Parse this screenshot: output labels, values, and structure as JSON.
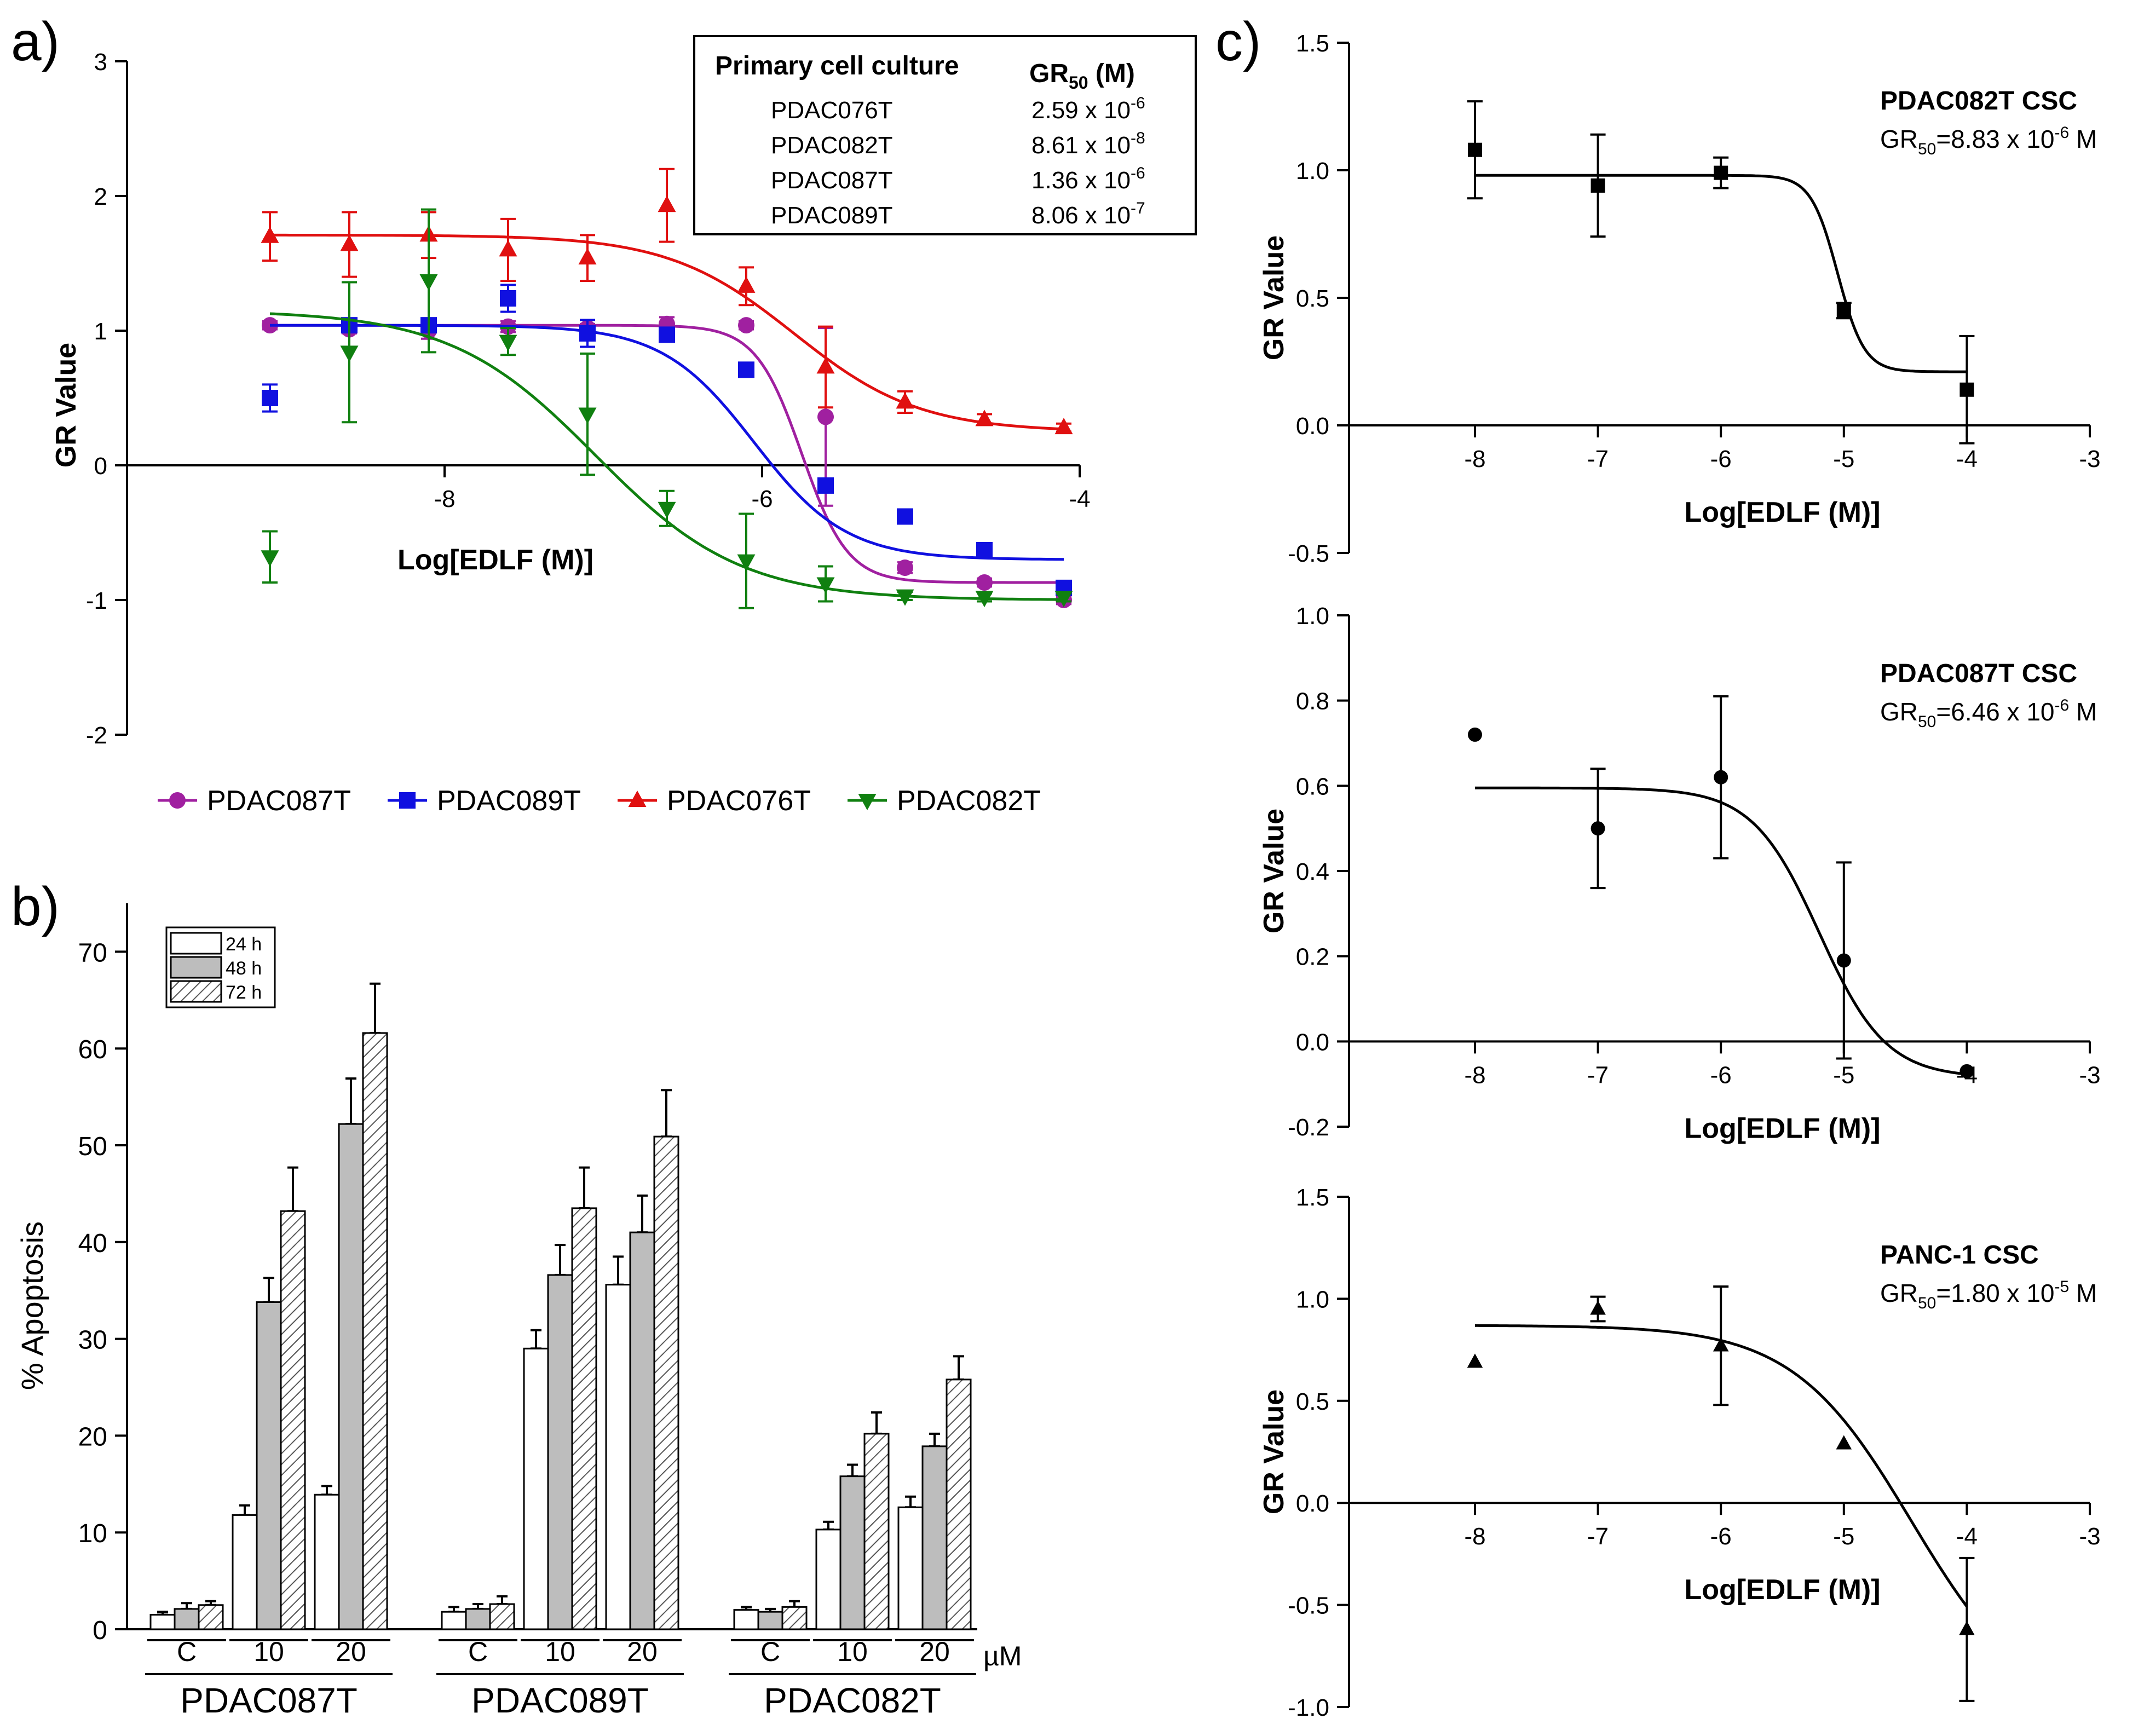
{
  "panel_labels": {
    "a": "a)",
    "b": "b)",
    "c": "c)"
  },
  "colors": {
    "PDAC087T": "#a020a0",
    "PDAC089T": "#1010e0",
    "PDAC076T": "#e01010",
    "PDAC082T": "#108010",
    "h24": "#ffffff",
    "h48": "#bdbdbd"
  },
  "table": {
    "header_col1": "Primary cell culture",
    "header_col2": "GR",
    "header_sub": "50",
    "header_unit": " (M)",
    "rows": [
      {
        "name": "PDAC076T",
        "mant": "2.59 x 10",
        "exp": "-6"
      },
      {
        "name": "PDAC082T",
        "mant": "8.61 x 10",
        "exp": "-8"
      },
      {
        "name": "PDAC087T",
        "mant": "1.36 x 10",
        "exp": "-6"
      },
      {
        "name": "PDAC089T",
        "mant": "8.06 x 10",
        "exp": "-7"
      }
    ]
  },
  "chart_data": [
    {
      "id": "a",
      "type": "scatter",
      "title": "",
      "xlabel": "Log[EDLF (M)]",
      "ylabel": "GR Value",
      "xlim": [
        -10,
        -4
      ],
      "ylim": [
        -2,
        3
      ],
      "xticks": [
        -8,
        -6,
        -4
      ],
      "yticks": [
        -2,
        -1,
        0,
        1,
        2,
        3
      ],
      "legend_position": "bottom",
      "series": [
        {
          "name": "PDAC087T",
          "marker": "circle",
          "x": [
            -9.1,
            -8.6,
            -8.1,
            -7.6,
            -7.1,
            -6.6,
            -6.1,
            -5.6,
            -5.1,
            -4.6,
            -4.1
          ],
          "y": [
            1.04,
            1.01,
            1.0,
            1.03,
            1.02,
            1.05,
            1.04,
            0.36,
            -0.76,
            -0.87,
            -1.0
          ],
          "err": [
            0.03,
            0.03,
            0.06,
            0.04,
            0.03,
            0.05,
            0.03,
            0.66,
            0.04,
            0.03,
            0.03
          ],
          "fit": {
            "top": 1.04,
            "bottom": -0.87,
            "logec50": -5.75,
            "hill": 3.0
          }
        },
        {
          "name": "PDAC089T",
          "marker": "square",
          "x": [
            -9.1,
            -8.6,
            -8.1,
            -7.6,
            -7.1,
            -6.6,
            -6.1,
            -5.6,
            -5.1,
            -4.6,
            -4.1
          ],
          "y": [
            0.5,
            1.04,
            1.04,
            1.24,
            0.98,
            0.97,
            0.71,
            -0.15,
            -0.38,
            -0.63,
            -0.91
          ],
          "err": [
            0.1,
            0.05,
            0.05,
            0.1,
            0.1,
            0.05,
            0.04,
            0.05,
            0.04,
            0.04,
            0.05
          ],
          "fit": {
            "top": 1.04,
            "bottom": -0.7,
            "logec50": -6.05,
            "hill": 1.5
          }
        },
        {
          "name": "PDAC076T",
          "marker": "triangle",
          "x": [
            -9.1,
            -8.6,
            -8.1,
            -7.6,
            -7.1,
            -6.6,
            -6.1,
            -5.6,
            -5.1,
            -4.6,
            -4.1
          ],
          "y": [
            1.7,
            1.64,
            1.71,
            1.6,
            1.54,
            1.93,
            1.33,
            0.73,
            0.47,
            0.34,
            0.28
          ],
          "err": [
            0.18,
            0.24,
            0.17,
            0.23,
            0.17,
            0.27,
            0.14,
            0.3,
            0.08,
            0.04,
            0.03
          ],
          "fit": {
            "top": 1.71,
            "bottom": 0.25,
            "logec50": -5.8,
            "hill": 1.1
          }
        },
        {
          "name": "PDAC082T",
          "marker": "triangle-down",
          "x": [
            -9.1,
            -8.6,
            -8.1,
            -7.6,
            -7.1,
            -6.6,
            -6.1,
            -5.6,
            -5.1,
            -4.6,
            -4.1
          ],
          "y": [
            -0.68,
            0.84,
            1.37,
            0.92,
            0.38,
            -0.32,
            -0.71,
            -0.88,
            -0.97,
            -0.98,
            -0.98
          ],
          "err": [
            0.19,
            0.52,
            0.53,
            0.1,
            0.45,
            0.13,
            0.35,
            0.13,
            0.03,
            0.03,
            0.03
          ],
          "fit": {
            "top": 1.15,
            "bottom": -1.0,
            "logec50": -7.05,
            "hill": 0.95
          }
        }
      ]
    },
    {
      "id": "b",
      "type": "bar",
      "title": "",
      "xlabel": "",
      "ylabel": "% Apoptosis",
      "ylim": [
        0,
        75
      ],
      "yticks": [
        0,
        10,
        20,
        30,
        40,
        50,
        60,
        70
      ],
      "unit_label": "µM",
      "legend": [
        "24 h",
        "48 h",
        "72 h"
      ],
      "legend_position": "top-left",
      "dose_labels": [
        "C",
        "10",
        "20"
      ],
      "groups": [
        {
          "name": "PDAC087T",
          "values": [
            [
              1.5,
              2.1,
              2.5
            ],
            [
              11.8,
              33.8,
              43.2
            ],
            [
              13.9,
              52.2,
              61.6
            ]
          ],
          "errors": [
            [
              0.3,
              0.6,
              0.4
            ],
            [
              1.0,
              2.5,
              4.5
            ],
            [
              0.9,
              4.7,
              5.1
            ]
          ]
        },
        {
          "name": "PDAC089T",
          "values": [
            [
              1.8,
              2.1,
              2.6
            ],
            [
              29.0,
              36.6,
              43.5
            ],
            [
              35.6,
              41.0,
              50.9
            ]
          ],
          "errors": [
            [
              0.5,
              0.5,
              0.8
            ],
            [
              1.9,
              3.1,
              4.2
            ],
            [
              2.9,
              3.8,
              4.8
            ]
          ]
        },
        {
          "name": "PDAC082T",
          "values": [
            [
              2.0,
              1.8,
              2.3
            ],
            [
              10.3,
              15.8,
              20.2
            ],
            [
              12.6,
              18.9,
              25.8
            ]
          ],
          "errors": [
            [
              0.3,
              0.3,
              0.6
            ],
            [
              0.8,
              1.2,
              2.2
            ],
            [
              1.1,
              1.3,
              2.4
            ]
          ]
        }
      ]
    },
    {
      "id": "c1",
      "type": "scatter",
      "marker": "square",
      "title": "PDAC082T CSC",
      "gr50_mant": "=8.83 x 10",
      "gr50_exp": "-6",
      "gr50_unit": " M",
      "xlabel": "Log[EDLF (M)]",
      "ylabel": "GR Value",
      "xlim": [
        -9,
        -3
      ],
      "ylim": [
        -0.5,
        1.5
      ],
      "xticks": [
        -8,
        -7,
        -6,
        -5,
        -4,
        -3
      ],
      "yticks": [
        -0.5,
        0.0,
        0.5,
        1.0,
        1.5
      ],
      "ytick_labels": [
        "-0.5",
        "0.0",
        "0.5",
        "1.0",
        "1.5"
      ],
      "x": [
        -8,
        -7,
        -6,
        -5,
        -4
      ],
      "y": [
        1.08,
        0.94,
        0.99,
        0.45,
        0.14
      ],
      "err": [
        0.19,
        0.2,
        0.06,
        0.03,
        0.21
      ],
      "fit": {
        "top": 0.98,
        "bottom": 0.21,
        "logec50": -5.05,
        "hill": 4.0
      }
    },
    {
      "id": "c2",
      "type": "scatter",
      "marker": "circle",
      "title": "PDAC087T CSC",
      "gr50_mant": "=6.46 x 10",
      "gr50_exp": "-6",
      "gr50_unit": " M",
      "xlabel": "Log[EDLF (M)]",
      "ylabel": "GR Value",
      "xlim": [
        -9,
        -3
      ],
      "ylim": [
        -0.2,
        1.0
      ],
      "xticks": [
        -8,
        -7,
        -6,
        -5,
        -4,
        -3
      ],
      "yticks": [
        -0.2,
        0.0,
        0.2,
        0.4,
        0.6,
        0.8,
        1.0
      ],
      "ytick_labels": [
        "-0.2",
        "0.0",
        "0.2",
        "0.4",
        "0.6",
        "0.8",
        "1.0"
      ],
      "x": [
        -8,
        -7,
        -6,
        -5,
        -4
      ],
      "y": [
        0.72,
        0.5,
        0.62,
        0.19,
        -0.07
      ],
      "err": [
        0,
        0.14,
        0.19,
        0.23,
        0
      ],
      "fit": {
        "top": 0.595,
        "bottom": -0.085,
        "logec50": -5.2,
        "hill": 1.6
      }
    },
    {
      "id": "c3",
      "type": "scatter",
      "marker": "triangle",
      "title": "PANC-1 CSC",
      "gr50_mant": "=1.80 x 10",
      "gr50_exp": "-5",
      "gr50_unit": " M",
      "xlabel": "Log[EDLF (M)]",
      "ylabel": "GR Value",
      "xlim": [
        -9,
        -3
      ],
      "ylim": [
        -1.0,
        1.5
      ],
      "xticks": [
        -8,
        -7,
        -6,
        -5,
        -4,
        -3
      ],
      "yticks": [
        -1.0,
        -0.5,
        0.0,
        0.5,
        1.0,
        1.5
      ],
      "ytick_labels": [
        "-1.0",
        "-0.5",
        "0.0",
        "0.5",
        "1.0",
        "1.5"
      ],
      "x": [
        -8,
        -7,
        -6,
        -5,
        -4
      ],
      "y": [
        0.69,
        0.95,
        0.77,
        0.29,
        -0.62
      ],
      "err": [
        0,
        0.06,
        0.29,
        0,
        0.35
      ],
      "fit": {
        "top": 0.87,
        "bottom": -1.05,
        "logec50": -4.45,
        "hill": 0.9
      }
    }
  ]
}
